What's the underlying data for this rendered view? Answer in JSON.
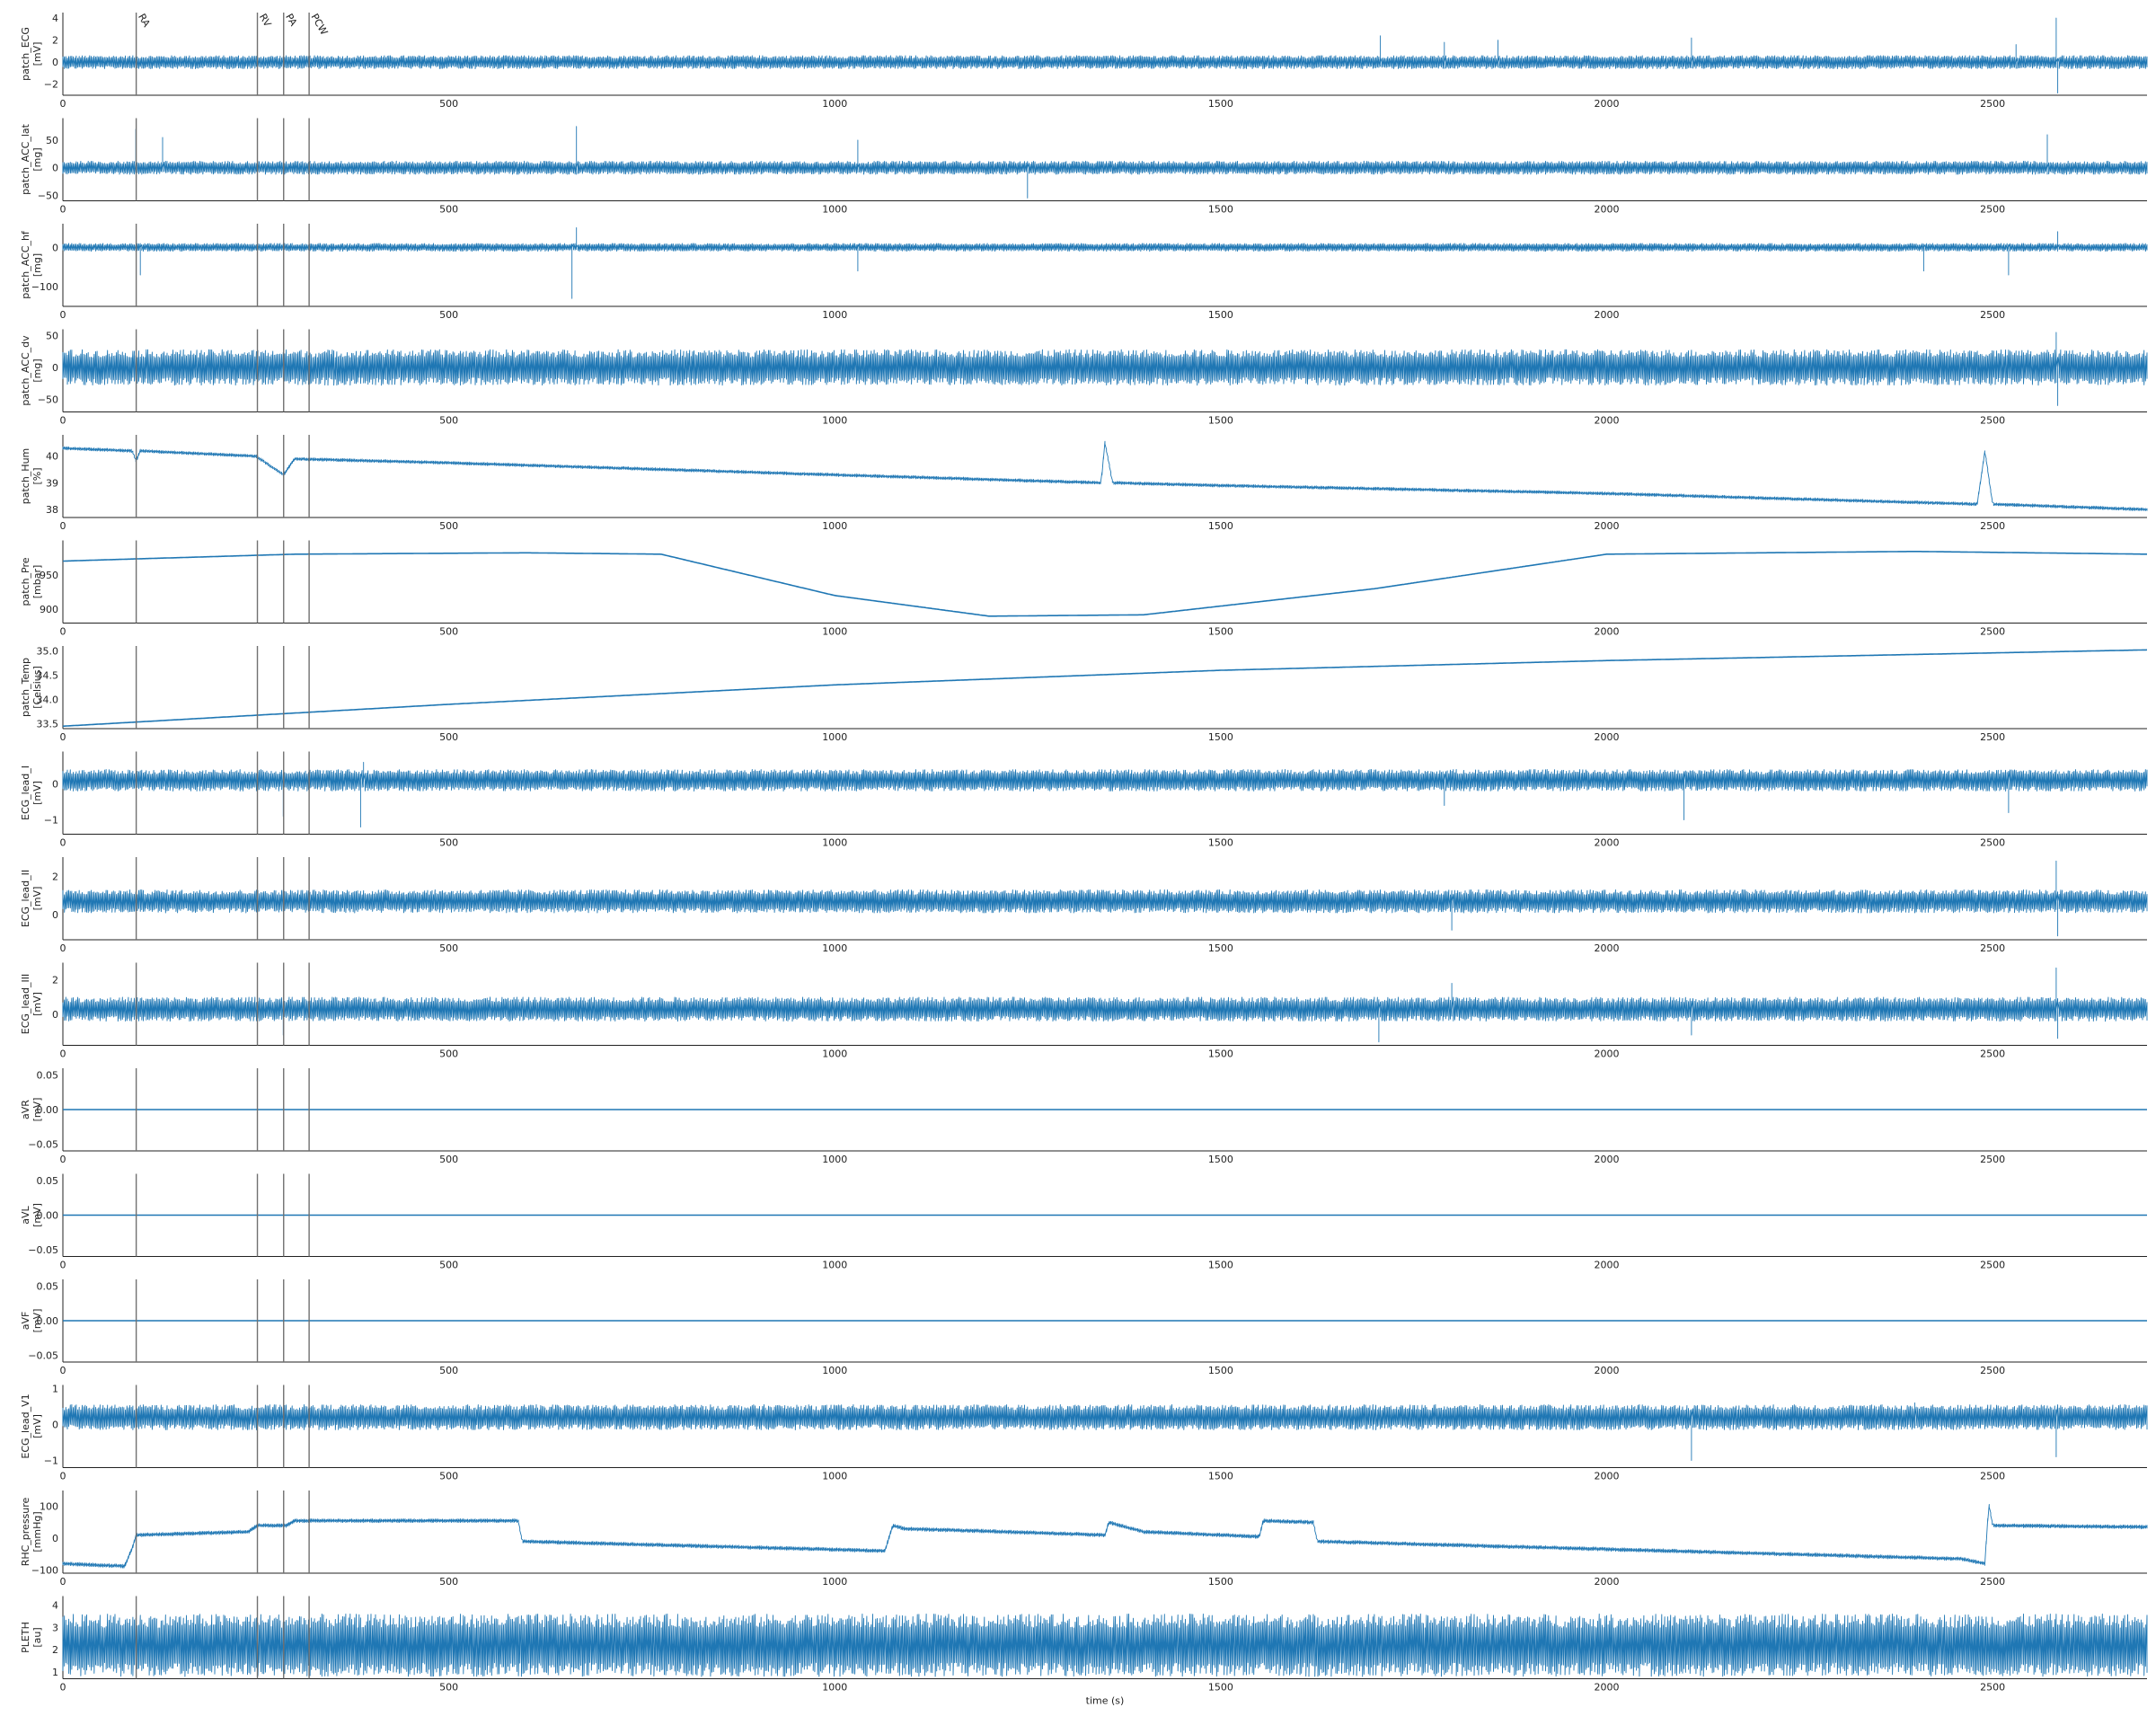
{
  "figure": {
    "xlabel": "time (s)",
    "xlim": [
      0,
      2700
    ],
    "x_ticks": [
      0,
      500,
      1000,
      1500,
      2000,
      2500
    ],
    "series_color": "#1f77b4",
    "event_line_color": "#707070",
    "events": [
      {
        "label": "RA",
        "t": 95
      },
      {
        "label": "RV",
        "t": 252
      },
      {
        "label": "PA",
        "t": 286
      },
      {
        "label": "PCW",
        "t": 319
      }
    ]
  },
  "chart_data": [
    {
      "type": "line",
      "name": "patch_ECG",
      "unit": "[mV]",
      "ylim": [
        -3,
        4.5
      ],
      "y_ticks": [
        -2,
        0,
        2,
        4
      ],
      "y_tick_labels": [
        "−2",
        "0",
        "2",
        "4"
      ],
      "baseline": 0,
      "noise": 0.6,
      "spikes": [
        [
          1707,
          2.4
        ],
        [
          1790,
          1.8
        ],
        [
          1860,
          2.0
        ],
        [
          2110,
          2.2
        ],
        [
          2530,
          1.6
        ],
        [
          2583,
          4.0
        ],
        [
          2585,
          -2.8
        ]
      ]
    },
    {
      "type": "line",
      "name": "patch_ACC_lat",
      "unit": "[mg]",
      "ylim": [
        -60,
        90
      ],
      "y_ticks": [
        -50,
        0,
        50
      ],
      "y_tick_labels": [
        "−50",
        "0",
        "50"
      ],
      "baseline": 0,
      "noise": 12,
      "spikes": [
        [
          95,
          70
        ],
        [
          130,
          55
        ],
        [
          665,
          75
        ],
        [
          1030,
          50
        ],
        [
          1250,
          -55
        ],
        [
          2570,
          60
        ]
      ]
    },
    {
      "type": "line",
      "name": "patch_ACC_hf",
      "unit": "[mg]",
      "ylim": [
        -150,
        60
      ],
      "y_ticks": [
        -100,
        0
      ],
      "y_tick_labels": [
        "−100",
        "0"
      ],
      "baseline": 0,
      "noise": 10,
      "spikes": [
        [
          100,
          -70
        ],
        [
          660,
          -130
        ],
        [
          665,
          50
        ],
        [
          1030,
          -60
        ],
        [
          2410,
          -60
        ],
        [
          2520,
          -70
        ],
        [
          2585,
          40
        ]
      ]
    },
    {
      "type": "line",
      "name": "patch_ACC_dv",
      "unit": "[mg]",
      "ylim": [
        -70,
        60
      ],
      "y_ticks": [
        -50,
        0,
        50
      ],
      "y_tick_labels": [
        "−50",
        "0",
        "50"
      ],
      "baseline": 0,
      "noise": 28,
      "spikes": [
        [
          2583,
          55
        ],
        [
          2585,
          -60
        ]
      ]
    },
    {
      "type": "line",
      "name": "patch_Hum",
      "unit": "[%]",
      "ylim": [
        37.7,
        40.8
      ],
      "y_ticks": [
        38,
        39,
        40
      ],
      "y_tick_labels": [
        "38",
        "39",
        "40"
      ],
      "trend": [
        [
          0,
          40.3
        ],
        [
          90,
          40.2
        ],
        [
          95,
          39.8
        ],
        [
          100,
          40.2
        ],
        [
          250,
          40.0
        ],
        [
          286,
          39.3
        ],
        [
          300,
          39.9
        ],
        [
          500,
          39.75
        ],
        [
          1000,
          39.3
        ],
        [
          1345,
          39.0
        ],
        [
          1350,
          40.5
        ],
        [
          1360,
          39.0
        ],
        [
          1500,
          38.9
        ],
        [
          2000,
          38.6
        ],
        [
          2480,
          38.2
        ],
        [
          2490,
          40.2
        ],
        [
          2500,
          38.2
        ],
        [
          2700,
          38.0
        ]
      ],
      "noise": 0.06
    },
    {
      "type": "line",
      "name": "patch_Pre",
      "unit": "[mbar]",
      "ylim": [
        880,
        1000
      ],
      "y_ticks": [
        900,
        950
      ],
      "y_tick_labels": [
        "900",
        "950"
      ],
      "trend": [
        [
          0,
          970
        ],
        [
          300,
          980
        ],
        [
          600,
          982
        ],
        [
          775,
          980
        ],
        [
          1000,
          920
        ],
        [
          1200,
          890
        ],
        [
          1400,
          892
        ],
        [
          1700,
          930
        ],
        [
          2000,
          980
        ],
        [
          2400,
          984
        ],
        [
          2700,
          980
        ]
      ],
      "noise": 0
    },
    {
      "type": "line",
      "name": "patch_Temp",
      "unit": "[Celsius]",
      "ylim": [
        33.4,
        35.1
      ],
      "y_ticks": [
        33.5,
        34.0,
        34.5,
        35.0
      ],
      "y_tick_labels": [
        "33.5",
        "34.0",
        "34.5",
        "35.0"
      ],
      "trend": [
        [
          0,
          33.45
        ],
        [
          500,
          33.9
        ],
        [
          1000,
          34.3
        ],
        [
          1500,
          34.6
        ],
        [
          2000,
          34.8
        ],
        [
          2700,
          35.02
        ]
      ],
      "noise": 0
    },
    {
      "type": "line",
      "name": "ECG_lead_I",
      "unit": "[mV]",
      "ylim": [
        -1.4,
        0.9
      ],
      "y_ticks": [
        -1,
        0
      ],
      "y_tick_labels": [
        "−1",
        "0"
      ],
      "baseline": 0.1,
      "noise": 0.3,
      "spikes": [
        [
          285,
          -0.9
        ],
        [
          385,
          -1.2
        ],
        [
          390,
          0.6
        ],
        [
          1790,
          -0.6
        ],
        [
          2100,
          -1.0
        ],
        [
          2520,
          -0.8
        ]
      ]
    },
    {
      "type": "line",
      "name": "ECG_lead_II",
      "unit": "[mV]",
      "ylim": [
        -1.3,
        3.0
      ],
      "y_ticks": [
        0,
        2
      ],
      "y_tick_labels": [
        "0",
        "2"
      ],
      "baseline": 0.7,
      "noise": 0.6,
      "spikes": [
        [
          1800,
          -0.8
        ],
        [
          2583,
          2.8
        ],
        [
          2585,
          -1.1
        ]
      ]
    },
    {
      "type": "line",
      "name": "ECG_lead_III",
      "unit": "[mV]",
      "ylim": [
        -1.8,
        3.0
      ],
      "y_ticks": [
        0,
        2
      ],
      "y_tick_labels": [
        "0",
        "2"
      ],
      "baseline": 0.3,
      "noise": 0.7,
      "spikes": [
        [
          285,
          -1.2
        ],
        [
          1705,
          -1.6
        ],
        [
          1800,
          1.8
        ],
        [
          2110,
          -1.2
        ],
        [
          2583,
          2.7
        ],
        [
          2585,
          -1.4
        ]
      ]
    },
    {
      "type": "line",
      "name": "aVR",
      "unit": "[mV]",
      "ylim": [
        -0.06,
        0.06
      ],
      "y_ticks": [
        -0.05,
        0.0,
        0.05
      ],
      "y_tick_labels": [
        "−0.05",
        "0.00",
        "0.05"
      ],
      "trend": [
        [
          0,
          0
        ],
        [
          2700,
          0
        ]
      ],
      "noise": 0
    },
    {
      "type": "line",
      "name": "aVL",
      "unit": "[mV]",
      "ylim": [
        -0.06,
        0.06
      ],
      "y_ticks": [
        -0.05,
        0.0,
        0.05
      ],
      "y_tick_labels": [
        "−0.05",
        "0.00",
        "0.05"
      ],
      "trend": [
        [
          0,
          0
        ],
        [
          2700,
          0
        ]
      ],
      "noise": 0
    },
    {
      "type": "line",
      "name": "aVF",
      "unit": "[mV]",
      "ylim": [
        -0.06,
        0.06
      ],
      "y_ticks": [
        -0.05,
        0.0,
        0.05
      ],
      "y_tick_labels": [
        "−0.05",
        "0.00",
        "0.05"
      ],
      "trend": [
        [
          0,
          0
        ],
        [
          2700,
          0
        ]
      ],
      "noise": 0
    },
    {
      "type": "line",
      "name": "ECG_lead_V1",
      "unit": "[mV]",
      "ylim": [
        -1.2,
        1.1
      ],
      "y_ticks": [
        -1,
        0,
        1
      ],
      "y_tick_labels": [
        "−1",
        "0",
        "1"
      ],
      "baseline": 0.2,
      "noise": 0.35,
      "spikes": [
        [
          2110,
          -1.0
        ],
        [
          2400,
          0.6
        ],
        [
          2583,
          -0.9
        ]
      ]
    },
    {
      "type": "line",
      "name": "RHC_pressure",
      "unit": "[mmHg]",
      "ylim": [
        -110,
        150
      ],
      "y_ticks": [
        -100,
        0,
        100
      ],
      "y_tick_labels": [
        "−100",
        "0",
        "100"
      ],
      "trend": [
        [
          0,
          -80
        ],
        [
          80,
          -88
        ],
        [
          90,
          -30
        ],
        [
          95,
          10
        ],
        [
          240,
          20
        ],
        [
          252,
          40
        ],
        [
          290,
          40
        ],
        [
          300,
          55
        ],
        [
          590,
          55
        ],
        [
          595,
          -10
        ],
        [
          1065,
          -40
        ],
        [
          1075,
          40
        ],
        [
          1090,
          30
        ],
        [
          1350,
          10
        ],
        [
          1355,
          50
        ],
        [
          1400,
          20
        ],
        [
          1550,
          5
        ],
        [
          1555,
          55
        ],
        [
          1620,
          50
        ],
        [
          1625,
          -10
        ],
        [
          2460,
          -65
        ],
        [
          2490,
          -80
        ],
        [
          2495,
          110
        ],
        [
          2500,
          40
        ],
        [
          2700,
          35
        ]
      ],
      "noise": 6
    },
    {
      "type": "line",
      "name": "PLETH",
      "unit": "[au]",
      "ylim": [
        0.7,
        4.4
      ],
      "y_ticks": [
        1,
        2,
        3,
        4
      ],
      "y_tick_labels": [
        "1",
        "2",
        "3",
        "4"
      ],
      "baseline": 2.2,
      "noise": 1.4,
      "spikes": []
    }
  ]
}
